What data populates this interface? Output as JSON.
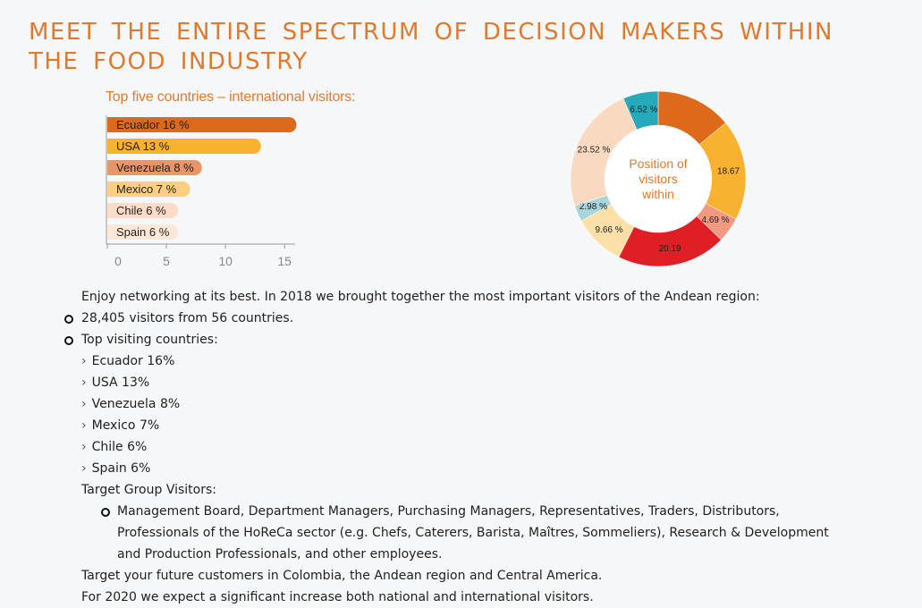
{
  "heading": "MEET THE ENTIRE SPECTRUM OF DECISION MAKERS WITHIN THE FOOD INDUSTRY",
  "chart_data": [
    {
      "type": "bar",
      "orientation": "horizontal",
      "title": "Top five countries – international visitors:",
      "categories": [
        "Ecuador",
        "USA",
        "Venezuela",
        "Mexico",
        "Chile",
        "Spain"
      ],
      "values": [
        16,
        13,
        8,
        7,
        6,
        6
      ],
      "labels": [
        "Ecuador 16 %",
        "USA 13 %",
        "Venezuela 8 %",
        "Mexico 7 %",
        "Chile 6 %",
        "Spain 6 %"
      ],
      "colors": [
        "#db6a1c",
        "#f8b22f",
        "#e9956a",
        "#fbce80",
        "#fcdcc8",
        "#fde8d8"
      ],
      "xticks": [
        "0",
        "5",
        "10",
        "15"
      ],
      "xlim": [
        0,
        16.5
      ]
    },
    {
      "type": "pie",
      "donut": true,
      "center_text": [
        "Position of",
        "visitors",
        "within"
      ],
      "slices": [
        {
          "value": 14.0,
          "label": "",
          "color": "#dc6a1a"
        },
        {
          "value": 18.67,
          "label": "18.67",
          "color": "#f8b22f"
        },
        {
          "value": 4.69,
          "label": "4.69 %",
          "color": "#f09a82"
        },
        {
          "value": 20.19,
          "label": "20.19",
          "color": "#e01e25"
        },
        {
          "value": 9.66,
          "label": "9.66 %",
          "color": "#fde0a8"
        },
        {
          "value": 2.98,
          "label": "2.98 %",
          "color": "#a8d4dc"
        },
        {
          "value": 23.52,
          "label": "23.52 %",
          "color": "#f9d9c0"
        },
        {
          "value": 6.52,
          "label": "6.52 %",
          "color": "#26a9b9"
        }
      ]
    }
  ],
  "body": {
    "intro": "Enjoy networking at its best. In 2018 we brought together the most important visitors of the Andean region:",
    "bullet1": "28,405 visitors from 56 countries.",
    "bullet2": "Top visiting countries:",
    "countries": [
      "Ecuador 16%",
      "USA 13%",
      "Venezuela 8%",
      "Mexico 7%",
      "Chile 6%",
      "Spain 6%"
    ],
    "target_heading": "Target Group Visitors:",
    "target_lines": [
      "Management Board, Department Managers, Purchasing Managers, Representatives, Traders, Distributors,",
      "Professionals of the HoReCa sector (e.g. Chefs, Caterers, Barista, Maîtres, Sommeliers), Research & Development",
      "and Production Professionals, and other employees."
    ],
    "closing1": "Target your future customers in Colombia, the Andean region and Central America.",
    "closing2": "For 2020 we expect a significant increase both national and international visitors."
  }
}
